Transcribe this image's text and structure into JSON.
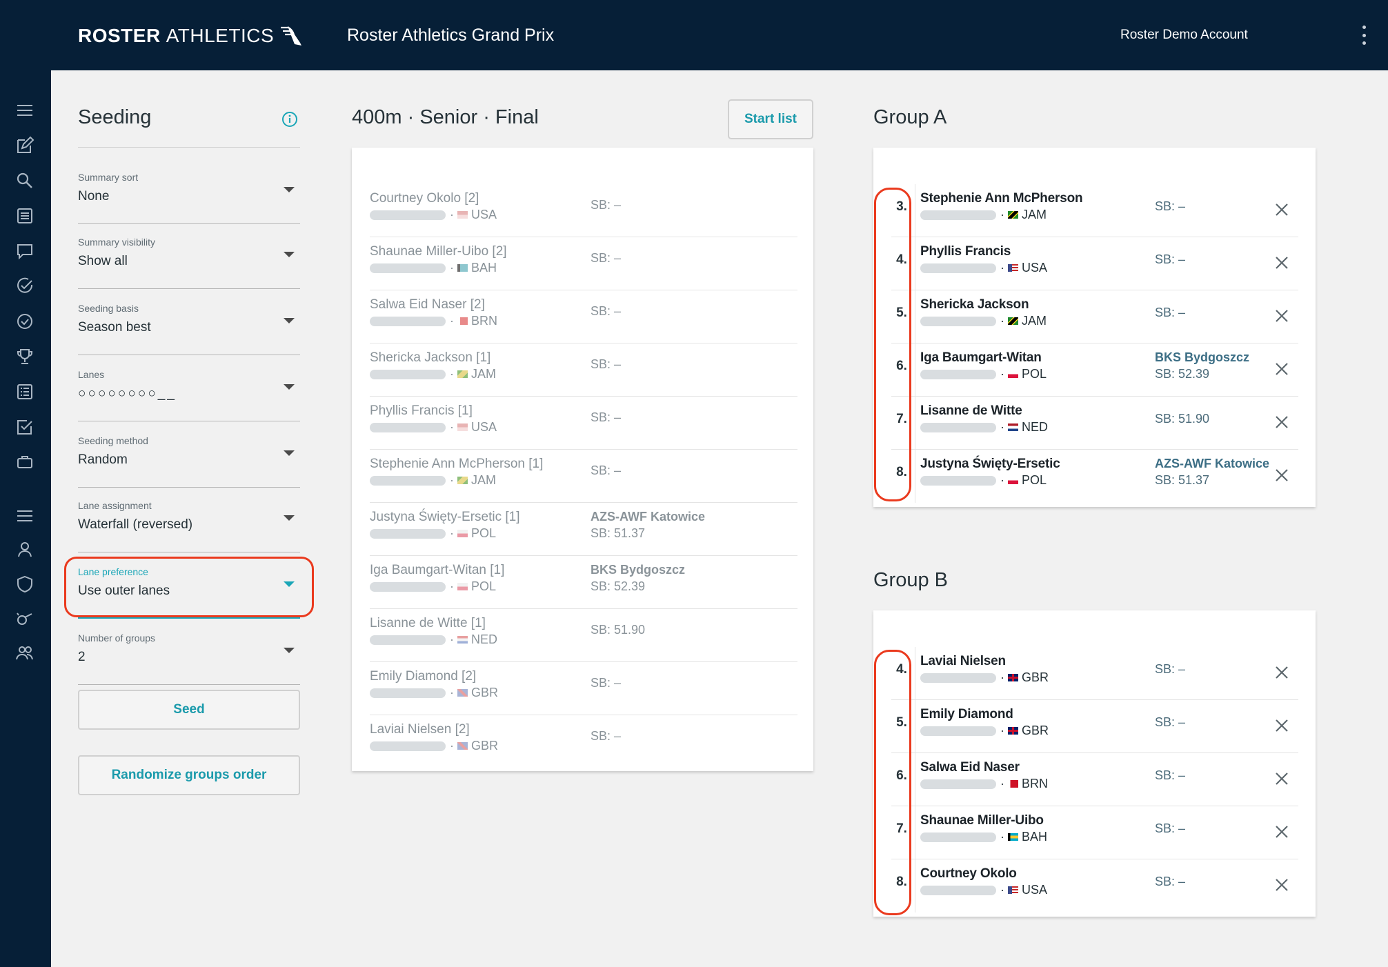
{
  "topbar": {
    "logo_bold": "ROSTER",
    "logo_thin": "ATHLETICS",
    "event_title": "Roster Athletics Grand Prix",
    "account": "Roster Demo Account"
  },
  "rail_icons": [
    "menu-icon",
    "edit-icon",
    "search-icon",
    "list-icon",
    "message-icon",
    "check-circle-icon",
    "clock-check-icon",
    "trophy-icon",
    "results-list-icon",
    "checkbox-icon",
    "briefcase-icon",
    "menu-icon",
    "user-icon",
    "shield-icon",
    "whistle-icon",
    "users-icon"
  ],
  "seeding": {
    "title": "Seeding",
    "fields": [
      {
        "label": "Summary sort",
        "value": "None"
      },
      {
        "label": "Summary visibility",
        "value": "Show all"
      },
      {
        "label": "Seeding basis",
        "value": "Season best"
      },
      {
        "label": "Lanes",
        "value": "○○○○○○○○__"
      },
      {
        "label": "Seeding method",
        "value": "Random"
      },
      {
        "label": "Lane assignment",
        "value": "Waterfall (reversed)"
      },
      {
        "label": "Lane preference",
        "value": "Use outer lanes"
      },
      {
        "label": "Number of groups",
        "value": "2"
      }
    ],
    "seed_button": "Seed",
    "randomize_button": "Randomize groups order"
  },
  "center": {
    "title": "400m · Senior · Final",
    "start_list_button": "Start list",
    "entries": [
      {
        "name": "Courtney Okolo [2]",
        "country": "USA",
        "flag": "usa",
        "club": "",
        "sb": "SB: –"
      },
      {
        "name": "Shaunae Miller-Uibo [2]",
        "country": "BAH",
        "flag": "bah",
        "club": "",
        "sb": "SB: –"
      },
      {
        "name": "Salwa Eid Naser [2]",
        "country": "BRN",
        "flag": "brn",
        "club": "",
        "sb": "SB: –"
      },
      {
        "name": "Shericka Jackson [1]",
        "country": "JAM",
        "flag": "jam",
        "club": "",
        "sb": "SB: –"
      },
      {
        "name": "Phyllis Francis [1]",
        "country": "USA",
        "flag": "usa",
        "club": "",
        "sb": "SB: –"
      },
      {
        "name": "Stephenie Ann McPherson [1]",
        "country": "JAM",
        "flag": "jam",
        "club": "",
        "sb": "SB: –"
      },
      {
        "name": "Justyna Święty-Ersetic [1]",
        "country": "POL",
        "flag": "pol",
        "club": "AZS-AWF Katowice",
        "sb": "SB: 51.37"
      },
      {
        "name": "Iga Baumgart-Witan [1]",
        "country": "POL",
        "flag": "pol",
        "club": "BKS Bydgoszcz",
        "sb": "SB: 52.39"
      },
      {
        "name": "Lisanne de Witte [1]",
        "country": "NED",
        "flag": "ned",
        "club": "",
        "sb": "SB: 51.90"
      },
      {
        "name": "Emily Diamond [2]",
        "country": "GBR",
        "flag": "gbr",
        "club": "",
        "sb": "SB: –"
      },
      {
        "name": "Laviai Nielsen [2]",
        "country": "GBR",
        "flag": "gbr",
        "club": "",
        "sb": "SB: –"
      }
    ]
  },
  "groups": [
    {
      "title": "Group A",
      "entries": [
        {
          "lane": "3.",
          "name": "Stephenie Ann McPherson",
          "country": "JAM",
          "flag": "jam",
          "club": "",
          "sb": "SB: –"
        },
        {
          "lane": "4.",
          "name": "Phyllis Francis",
          "country": "USA",
          "flag": "usa",
          "club": "",
          "sb": "SB: –"
        },
        {
          "lane": "5.",
          "name": "Shericka Jackson",
          "country": "JAM",
          "flag": "jam",
          "club": "",
          "sb": "SB: –"
        },
        {
          "lane": "6.",
          "name": "Iga Baumgart-Witan",
          "country": "POL",
          "flag": "pol",
          "club": "BKS Bydgoszcz",
          "sb": "SB: 52.39"
        },
        {
          "lane": "7.",
          "name": "Lisanne de Witte",
          "country": "NED",
          "flag": "ned",
          "club": "",
          "sb": "SB: 51.90"
        },
        {
          "lane": "8.",
          "name": "Justyna Święty-Ersetic",
          "country": "POL",
          "flag": "pol",
          "club": "AZS-AWF Katowice",
          "sb": "SB: 51.37"
        }
      ]
    },
    {
      "title": "Group B",
      "entries": [
        {
          "lane": "4.",
          "name": "Laviai Nielsen",
          "country": "GBR",
          "flag": "gbr",
          "club": "",
          "sb": "SB: –"
        },
        {
          "lane": "5.",
          "name": "Emily Diamond",
          "country": "GBR",
          "flag": "gbr",
          "club": "",
          "sb": "SB: –"
        },
        {
          "lane": "6.",
          "name": "Salwa Eid Naser",
          "country": "BRN",
          "flag": "brn",
          "club": "",
          "sb": "SB: –"
        },
        {
          "lane": "7.",
          "name": "Shaunae Miller-Uibo",
          "country": "BAH",
          "flag": "bah",
          "club": "",
          "sb": "SB: –"
        },
        {
          "lane": "8.",
          "name": "Courtney Okolo",
          "country": "USA",
          "flag": "usa",
          "club": "",
          "sb": "SB: –"
        }
      ]
    }
  ],
  "colors": {
    "topbar": "#061f37",
    "accent": "#1aa6b7",
    "highlight": "#ea3a1e"
  }
}
